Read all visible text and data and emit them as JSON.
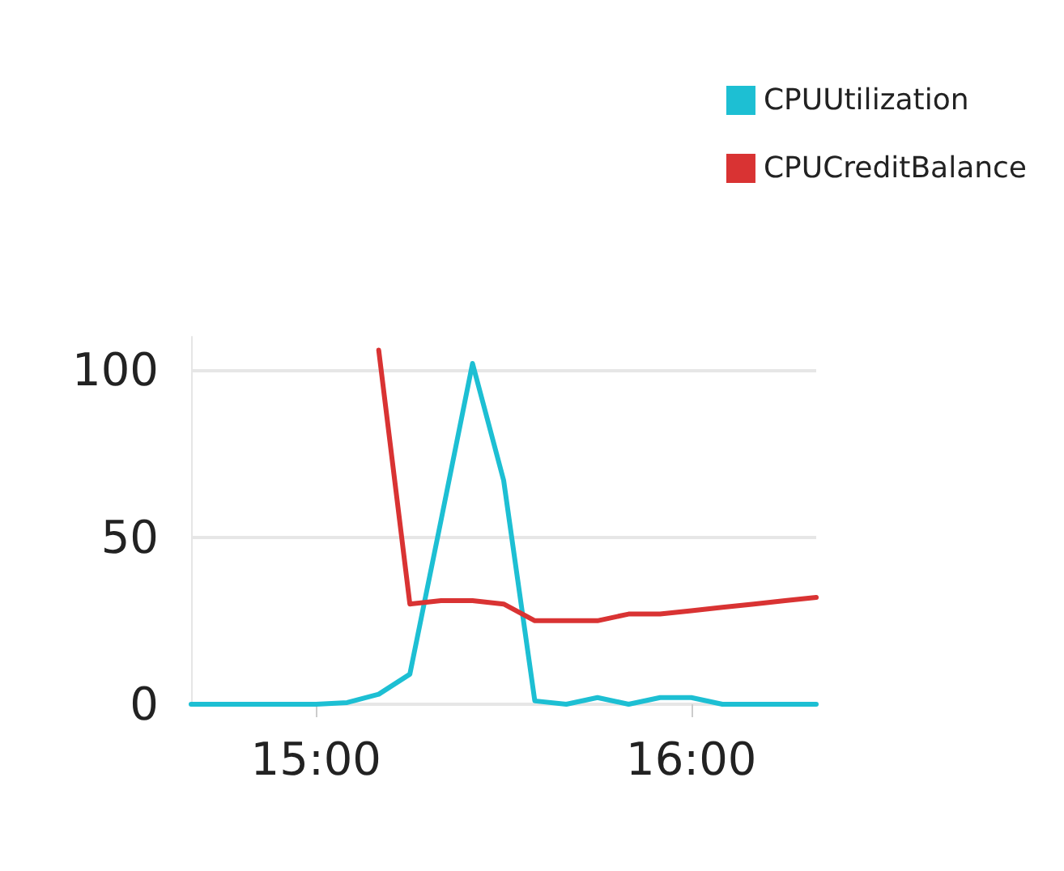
{
  "chart_data": {
    "type": "line",
    "x": [
      14.667,
      14.75,
      14.833,
      14.917,
      15,
      15.083,
      15.167,
      15.25,
      15.333,
      15.417,
      15.5,
      15.583,
      15.667,
      15.75,
      15.833,
      15.917,
      16,
      16.083,
      16.167,
      16.25,
      16.333
    ],
    "series": [
      {
        "name": "CPUUtilization",
        "color": "#1dbfd3",
        "values": [
          0,
          0,
          0,
          0,
          0,
          0.5,
          3,
          9,
          55,
          102,
          67,
          1,
          0,
          2,
          0,
          2,
          2,
          0,
          0,
          0,
          0
        ]
      },
      {
        "name": "CPUCreditBalance",
        "color": "#d93333",
        "values": [
          null,
          null,
          null,
          null,
          null,
          null,
          106,
          30,
          31,
          31,
          30,
          25,
          25,
          25,
          27,
          27,
          28,
          29,
          30,
          31,
          32
        ]
      }
    ],
    "xlim": [
      14.667,
      16.333
    ],
    "xticks": [
      {
        "value": 15,
        "label": "15:00"
      },
      {
        "value": 16,
        "label": "16:00"
      }
    ],
    "ylim": [
      0,
      110
    ],
    "yticks": [
      0,
      50,
      100
    ],
    "grid": "y",
    "legend": "top right",
    "marker": "none",
    "line_style": "solid"
  }
}
